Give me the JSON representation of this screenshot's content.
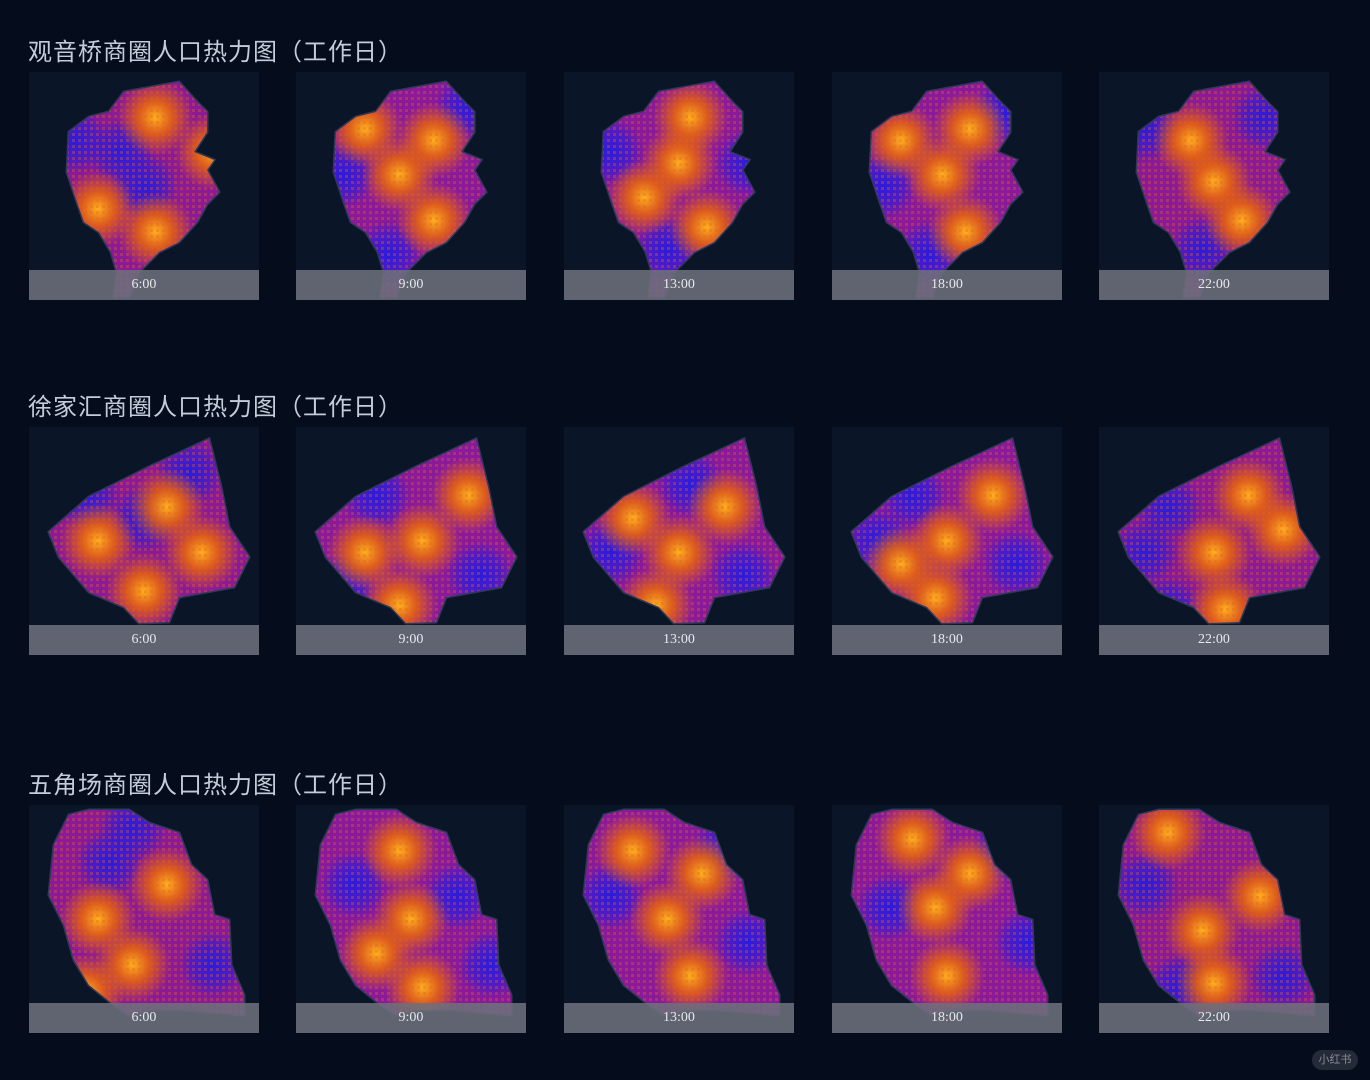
{
  "sections": [
    {
      "title": "观音桥商圈人口热力图（工作日）",
      "shape": "guanyinqiao",
      "panels": [
        {
          "time": "6:00",
          "hot": [
            [
              0.55,
              0.2
            ],
            [
              0.8,
              0.35
            ],
            [
              0.3,
              0.6
            ],
            [
              0.55,
              0.7
            ]
          ],
          "cold": [
            [
              0.4,
              0.35
            ],
            [
              0.2,
              0.3
            ],
            [
              0.5,
              0.5
            ]
          ]
        },
        {
          "time": "9:00",
          "hot": [
            [
              0.45,
              0.45
            ],
            [
              0.6,
              0.3
            ],
            [
              0.3,
              0.25
            ],
            [
              0.6,
              0.65
            ]
          ],
          "cold": [
            [
              0.2,
              0.45
            ],
            [
              0.75,
              0.15
            ],
            [
              0.4,
              0.8
            ]
          ]
        },
        {
          "time": "13:00",
          "hot": [
            [
              0.5,
              0.4
            ],
            [
              0.55,
              0.2
            ],
            [
              0.35,
              0.55
            ],
            [
              0.62,
              0.68
            ]
          ],
          "cold": [
            [
              0.2,
              0.35
            ],
            [
              0.45,
              0.78
            ],
            [
              0.8,
              0.4
            ]
          ]
        },
        {
          "time": "18:00",
          "hot": [
            [
              0.48,
              0.45
            ],
            [
              0.6,
              0.25
            ],
            [
              0.3,
              0.3
            ],
            [
              0.58,
              0.7
            ]
          ],
          "cold": [
            [
              0.22,
              0.5
            ],
            [
              0.75,
              0.18
            ],
            [
              0.42,
              0.8
            ]
          ]
        },
        {
          "time": "22:00",
          "hot": [
            [
              0.5,
              0.48
            ],
            [
              0.62,
              0.65
            ],
            [
              0.4,
              0.3
            ]
          ],
          "cold": [
            [
              0.2,
              0.25
            ],
            [
              0.45,
              0.78
            ],
            [
              0.72,
              0.2
            ]
          ]
        }
      ]
    },
    {
      "title": "徐家汇商圈人口热力图（工作日）",
      "shape": "xujiahui",
      "panels": [
        {
          "time": "6:00",
          "hot": [
            [
              0.3,
              0.5
            ],
            [
              0.6,
              0.35
            ],
            [
              0.5,
              0.72
            ],
            [
              0.75,
              0.55
            ]
          ],
          "cold": [
            [
              0.5,
              0.4
            ],
            [
              0.25,
              0.3
            ],
            [
              0.7,
              0.2
            ]
          ]
        },
        {
          "time": "9:00",
          "hot": [
            [
              0.55,
              0.5
            ],
            [
              0.45,
              0.78
            ],
            [
              0.75,
              0.3
            ],
            [
              0.3,
              0.55
            ]
          ],
          "cold": [
            [
              0.35,
              0.3
            ],
            [
              0.8,
              0.65
            ],
            [
              0.2,
              0.7
            ]
          ]
        },
        {
          "time": "13:00",
          "hot": [
            [
              0.5,
              0.55
            ],
            [
              0.4,
              0.78
            ],
            [
              0.7,
              0.35
            ],
            [
              0.3,
              0.4
            ]
          ],
          "cold": [
            [
              0.2,
              0.55
            ],
            [
              0.78,
              0.65
            ],
            [
              0.55,
              0.25
            ]
          ]
        },
        {
          "time": "18:00",
          "hot": [
            [
              0.5,
              0.5
            ],
            [
              0.45,
              0.75
            ],
            [
              0.7,
              0.3
            ],
            [
              0.3,
              0.6
            ]
          ],
          "cold": [
            [
              0.2,
              0.5
            ],
            [
              0.8,
              0.6
            ],
            [
              0.35,
              0.3
            ]
          ]
        },
        {
          "time": "22:00",
          "hot": [
            [
              0.5,
              0.55
            ],
            [
              0.65,
              0.3
            ],
            [
              0.55,
              0.8
            ],
            [
              0.8,
              0.45
            ]
          ],
          "cold": [
            [
              0.3,
              0.35
            ],
            [
              0.2,
              0.55
            ],
            [
              0.3,
              0.8
            ]
          ]
        }
      ]
    },
    {
      "title": "五角场商圈人口热力图（工作日）",
      "shape": "wujiaochang",
      "panels": [
        {
          "time": "6:00",
          "hot": [
            [
              0.3,
              0.5
            ],
            [
              0.45,
              0.7
            ],
            [
              0.6,
              0.35
            ],
            [
              0.25,
              0.82
            ]
          ],
          "cold": [
            [
              0.45,
              0.1
            ],
            [
              0.35,
              0.25
            ],
            [
              0.8,
              0.7
            ]
          ]
        },
        {
          "time": "9:00",
          "hot": [
            [
              0.5,
              0.5
            ],
            [
              0.45,
              0.2
            ],
            [
              0.35,
              0.65
            ],
            [
              0.55,
              0.8
            ]
          ],
          "cold": [
            [
              0.7,
              0.4
            ],
            [
              0.85,
              0.7
            ],
            [
              0.25,
              0.35
            ]
          ]
        },
        {
          "time": "13:00",
          "hot": [
            [
              0.45,
              0.5
            ],
            [
              0.3,
              0.2
            ],
            [
              0.55,
              0.75
            ],
            [
              0.6,
              0.3
            ]
          ],
          "cold": [
            [
              0.2,
              0.4
            ],
            [
              0.8,
              0.6
            ],
            [
              0.7,
              0.2
            ]
          ]
        },
        {
          "time": "18:00",
          "hot": [
            [
              0.45,
              0.45
            ],
            [
              0.35,
              0.15
            ],
            [
              0.5,
              0.75
            ],
            [
              0.6,
              0.3
            ]
          ],
          "cold": [
            [
              0.25,
              0.45
            ],
            [
              0.85,
              0.6
            ],
            [
              0.75,
              0.2
            ]
          ]
        },
        {
          "time": "22:00",
          "hot": [
            [
              0.45,
              0.55
            ],
            [
              0.3,
              0.12
            ],
            [
              0.5,
              0.78
            ],
            [
              0.7,
              0.4
            ]
          ],
          "cold": [
            [
              0.2,
              0.35
            ],
            [
              0.8,
              0.75
            ],
            [
              0.35,
              0.8
            ]
          ]
        }
      ]
    }
  ],
  "colors": {
    "background": "#050d1d",
    "panel": "#0a1528",
    "cold": "#2a1be0",
    "mid": "#8a1a9a",
    "warm": "#e8640c",
    "hot": "#ffb020",
    "caption_bg": "#6c707a"
  },
  "watermark": "小红书"
}
